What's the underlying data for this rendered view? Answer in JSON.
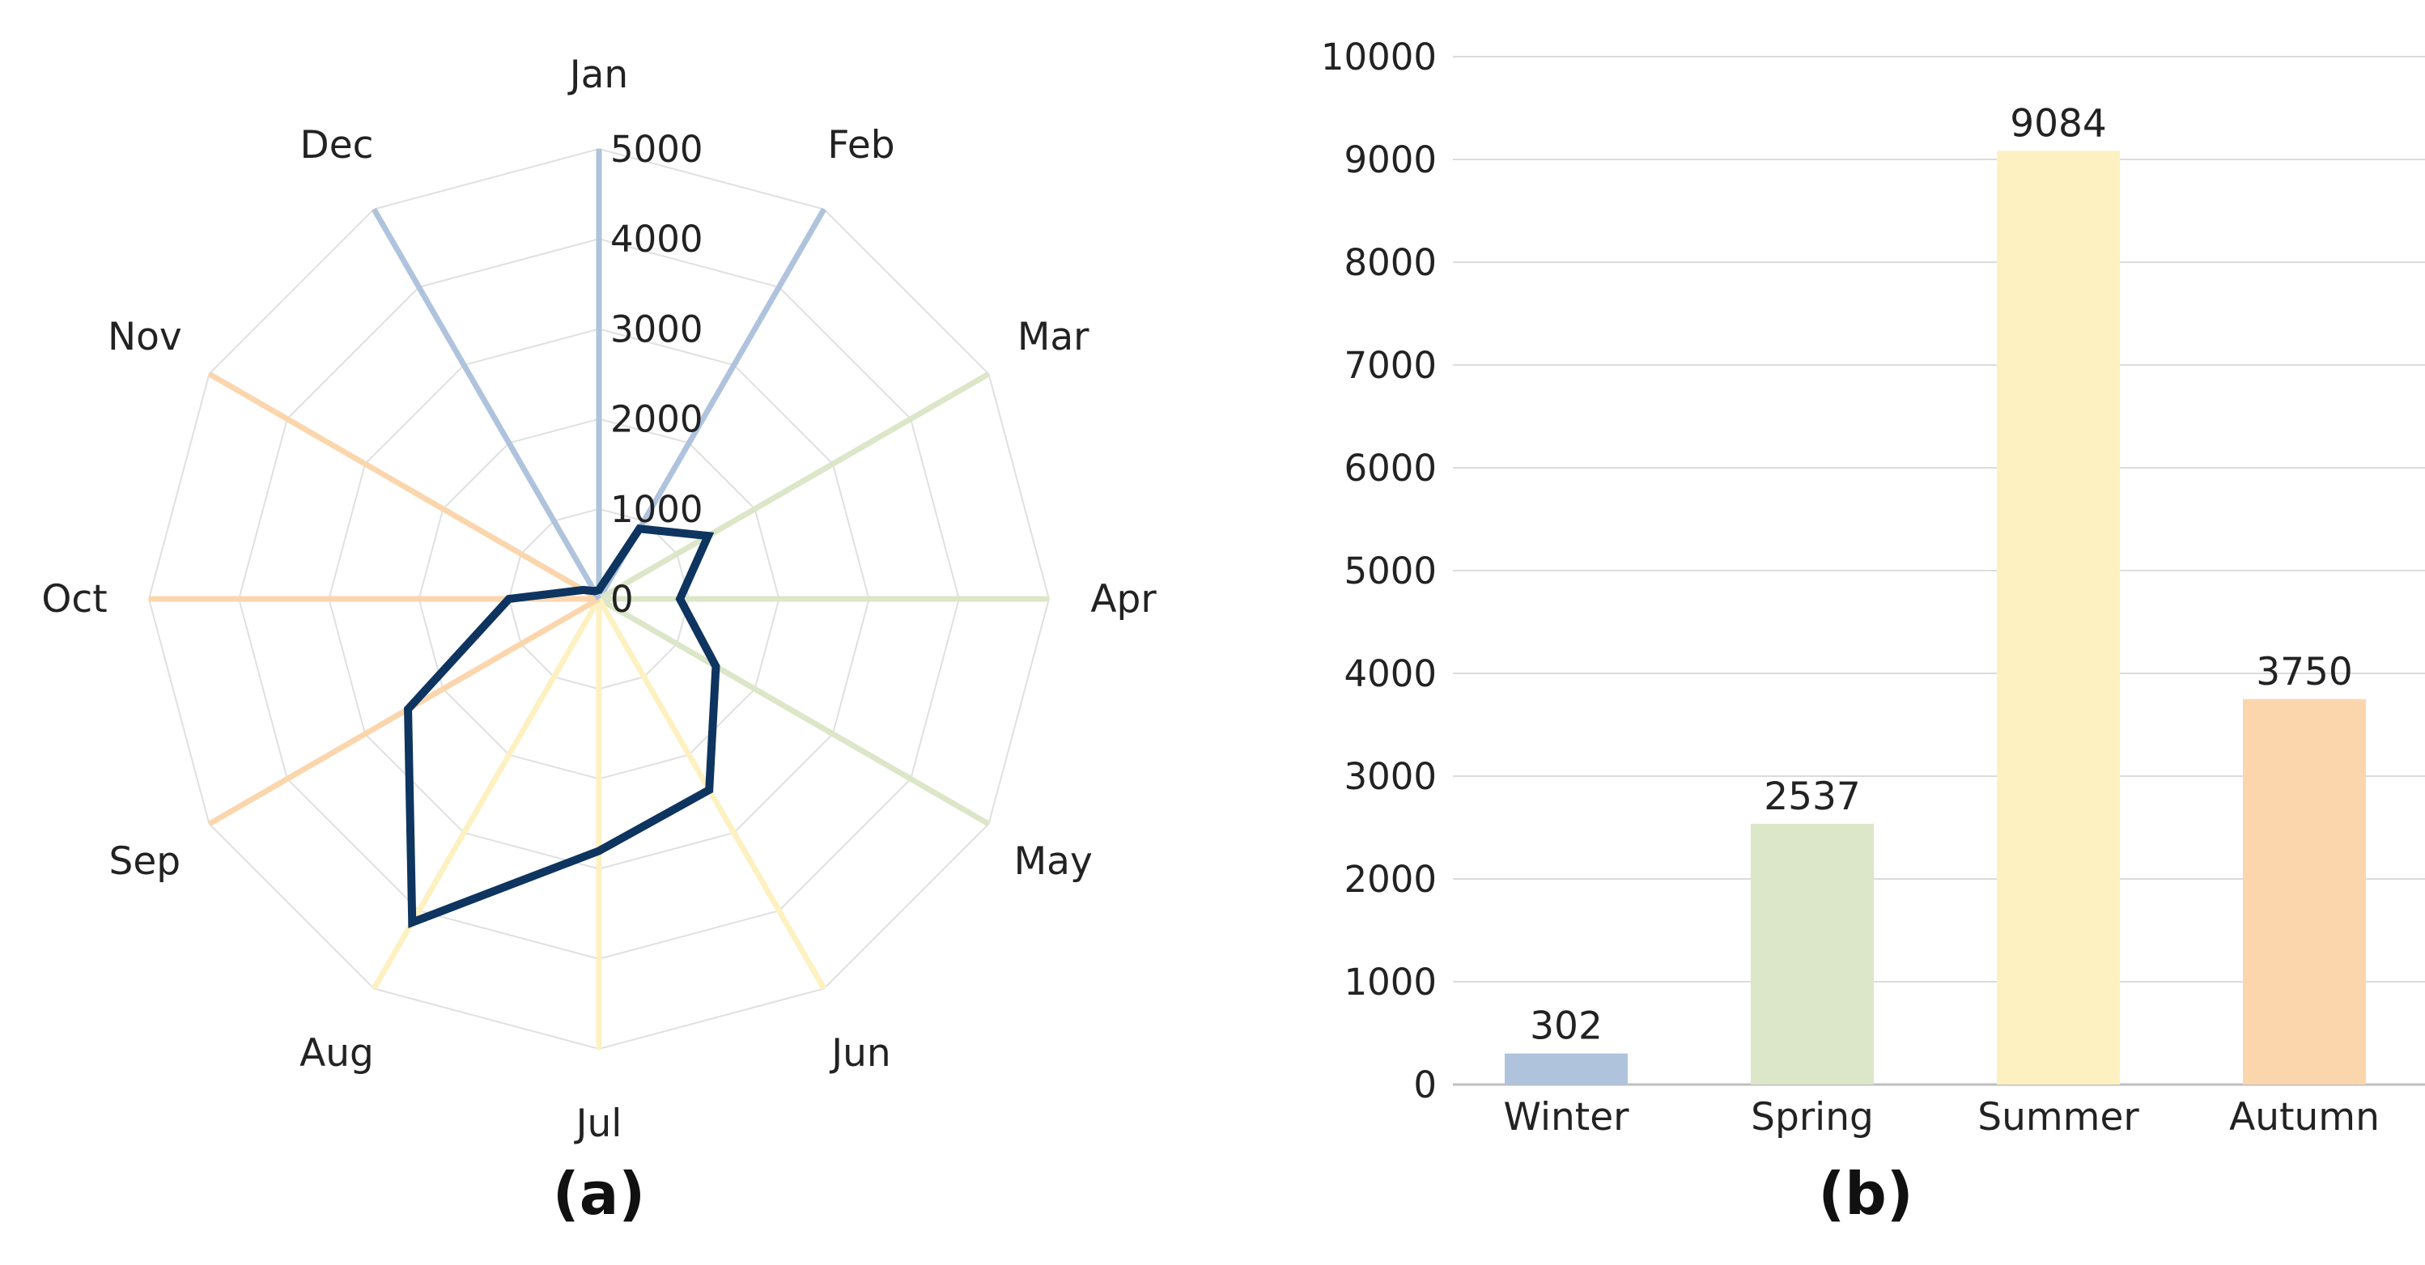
{
  "panel_labels": {
    "a": "(a)",
    "b": "(b)"
  },
  "colors": {
    "winter": "#afc3dd",
    "spring": "#dce6c8",
    "summer": "#fdf1c2",
    "autumn": "#fbd6ad",
    "radar_line": "#0e3460",
    "grid": "#dcdcdc",
    "radar_web": "#e0e0e0"
  },
  "chart_data": [
    {
      "type": "radar",
      "categories": [
        "Jan",
        "Feb",
        "Mar",
        "Apr",
        "May",
        "Jun",
        "Jul",
        "Aug",
        "Sep",
        "Oct",
        "Nov",
        "Dec"
      ],
      "axis_colors": [
        "#afc3dd",
        "#afc3dd",
        "#dce6c8",
        "#dce6c8",
        "#dce6c8",
        "#fdf1c2",
        "#fdf1c2",
        "#fdf1c2",
        "#fbd6ad",
        "#fbd6ad",
        "#fbd6ad",
        "#afc3dd"
      ],
      "ticks": [
        "0",
        "1000",
        "2000",
        "3000",
        "4000",
        "5000"
      ],
      "rlim": [
        0,
        5000
      ],
      "series": [
        {
          "values": [
            100,
            900,
            1400,
            900,
            1500,
            2450,
            2800,
            4150,
            2450,
            1000,
            200,
            100
          ]
        }
      ]
    },
    {
      "type": "bar",
      "categories": [
        "Winter",
        "Spring",
        "Summer",
        "Autumn"
      ],
      "values": [
        302,
        2537,
        9084,
        3750
      ],
      "data_labels": [
        "302",
        "2537",
        "9084",
        "3750"
      ],
      "bar_colors": [
        "#afc3dd",
        "#dce6c8",
        "#fdf1c2",
        "#fbd6ad"
      ],
      "ticks": [
        "0",
        "1000",
        "2000",
        "3000",
        "4000",
        "5000",
        "6000",
        "7000",
        "8000",
        "9000",
        "10000"
      ],
      "ylim": [
        0,
        10000
      ],
      "grid": true
    }
  ]
}
